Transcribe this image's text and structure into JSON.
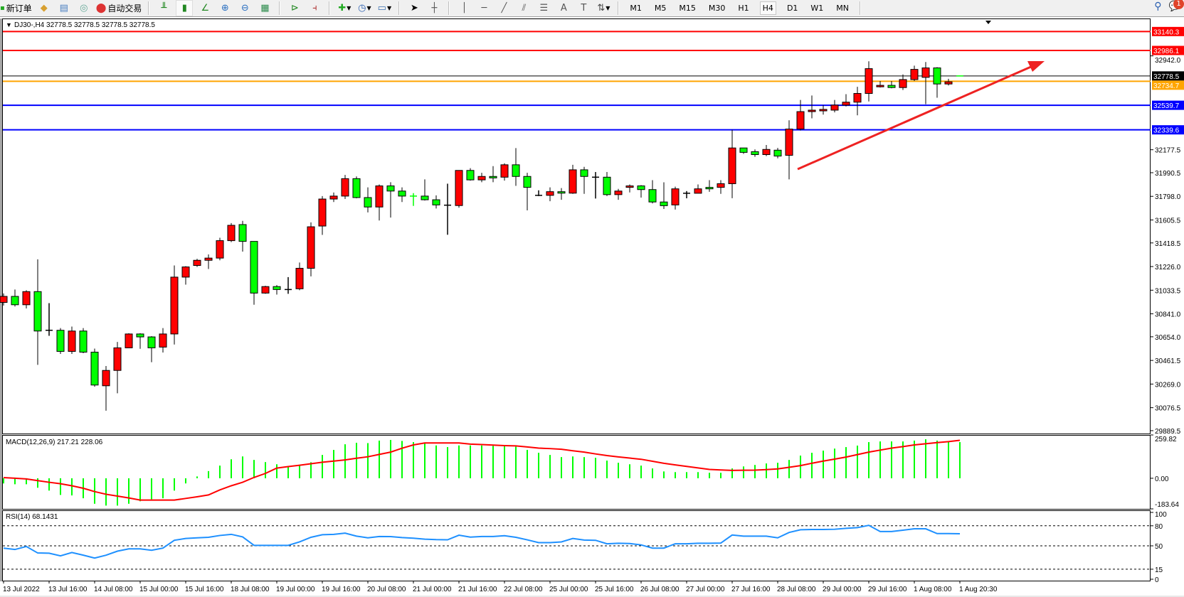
{
  "toolbar": {
    "new_order": "新订单",
    "auto_trading": "自动交易",
    "timeframes": [
      "M1",
      "M5",
      "M15",
      "M30",
      "H1",
      "H4",
      "D1",
      "W1",
      "MN"
    ],
    "active_timeframe": "H4",
    "notification_count": "1",
    "icons": [
      "new-order-icon",
      "market-watch-icon",
      "navigator-icon",
      "signals-icon",
      "auto-trading-icon",
      "bar-chart-icon",
      "candlestick-icon",
      "line-chart-icon",
      "zoom-in-icon",
      "zoom-out-icon",
      "tile-windows-icon",
      "auto-scroll-icon",
      "chart-shift-icon",
      "indicators-icon",
      "periods-icon",
      "templates-icon",
      "cursor-icon",
      "crosshair-icon",
      "vertical-line-icon",
      "horizontal-line-icon",
      "trendline-icon",
      "equidistant-channel-icon",
      "fibonacci-icon",
      "text-icon",
      "text-label-icon",
      "shapes-icon",
      "search-icon",
      "chat-icon"
    ]
  },
  "chart": {
    "header": "DJ30-,H4  32778.5 32778.5 32778.5 32778.5",
    "macd_label": "MACD(12,26,9) 217.21 228.06",
    "rsi_label": "RSI(14) 68.1431"
  },
  "chart_data": {
    "type": "candlestick",
    "symbol": "DJ30-",
    "timeframe": "H4",
    "colors": {
      "bull": "#ff0000",
      "bear": "#00ff00",
      "wick": "#000000",
      "macd_hist": "#00ff00",
      "macd_signal": "#ff0000",
      "rsi": "#1e90ff"
    },
    "ylim": [
      29866,
      33235
    ],
    "price_ticks": [
      "32942.0",
      "32177.5",
      "31990.5",
      "31798.0",
      "31605.5",
      "31418.5",
      "31226.0",
      "31033.5",
      "30841.0",
      "30654.0",
      "30461.5",
      "30269.0",
      "30076.5",
      "29889.5"
    ],
    "bid": "32778.5",
    "levels": [
      {
        "price": "33140.3",
        "color": "#ff0000"
      },
      {
        "price": "32986.1",
        "color": "#ff0000"
      },
      {
        "price": "32734.7",
        "color": "#ffa500"
      },
      {
        "price": "32539.7",
        "color": "#0000ff"
      },
      {
        "price": "32339.6",
        "color": "#0000ff"
      }
    ],
    "time_labels": [
      "13 Jul 2022",
      "13 Jul 16:00",
      "14 Jul 08:00",
      "15 Jul 00:00",
      "15 Jul 16:00",
      "18 Jul 08:00",
      "19 Jul 00:00",
      "19 Jul 16:00",
      "20 Jul 08:00",
      "21 Jul 00:00",
      "21 Jul 16:00",
      "22 Jul 08:00",
      "25 Jul 00:00",
      "25 Jul 16:00",
      "26 Jul 08:00",
      "27 Jul 00:00",
      "27 Jul 16:00",
      "28 Jul 08:00",
      "29 Jul 00:00",
      "29 Jul 16:00",
      "1 Aug 08:00",
      "1 Aug 20:30"
    ],
    "ohlc": [
      [
        30934,
        31007,
        30909,
        30983
      ],
      [
        30983,
        31039,
        30901,
        30915
      ],
      [
        30915,
        31033,
        30885,
        31022
      ],
      [
        31022,
        31285,
        30425,
        30701
      ],
      [
        30707,
        30928,
        30662,
        30707
      ],
      [
        30707,
        30725,
        30514,
        30535
      ],
      [
        30535,
        30737,
        30514,
        30701
      ],
      [
        30701,
        30725,
        30520,
        30529
      ],
      [
        30529,
        30558,
        30247,
        30261
      ],
      [
        30255,
        30416,
        30052,
        30380
      ],
      [
        30380,
        30612,
        30194,
        30564
      ],
      [
        30564,
        30683,
        30564,
        30677
      ],
      [
        30677,
        30683,
        30556,
        30653
      ],
      [
        30653,
        30659,
        30447,
        30564
      ],
      [
        30570,
        30725,
        30526,
        30677
      ],
      [
        30677,
        31235,
        30591,
        31140
      ],
      [
        31140,
        31229,
        31079,
        31223
      ],
      [
        31235,
        31289,
        31223,
        31277
      ],
      [
        31277,
        31325,
        31206,
        31295
      ],
      [
        31295,
        31461,
        31277,
        31437
      ],
      [
        31437,
        31580,
        31425,
        31562
      ],
      [
        31568,
        31598,
        31348,
        31431
      ],
      [
        31431,
        31431,
        30915,
        31010
      ],
      [
        31010,
        31069,
        31004,
        31063
      ],
      [
        31063,
        31075,
        30998,
        31039
      ],
      [
        31039,
        31140,
        31004,
        31039
      ],
      [
        31045,
        31259,
        31033,
        31212
      ],
      [
        31212,
        31586,
        31146,
        31550
      ],
      [
        31556,
        31800,
        31484,
        31776
      ],
      [
        31776,
        31829,
        31752,
        31800
      ],
      [
        31800,
        31972,
        31776,
        31942
      ],
      [
        31942,
        31960,
        31782,
        31788
      ],
      [
        31788,
        31871,
        31667,
        31711
      ],
      [
        31711,
        31895,
        31601,
        31883
      ],
      [
        31883,
        31913,
        31625,
        31841
      ],
      [
        31841,
        31871,
        31752,
        31800
      ],
      [
        31801,
        31824,
        31720,
        31800
      ],
      [
        31800,
        31936,
        31764,
        31770
      ],
      [
        31770,
        31806,
        31699,
        31728
      ],
      [
        31726,
        31901,
        31485,
        31726
      ],
      [
        31723,
        32009,
        31705,
        32009
      ],
      [
        32009,
        32027,
        31926,
        31932
      ],
      [
        31932,
        31990,
        31913,
        31960
      ],
      [
        31960,
        32044,
        31913,
        31948
      ],
      [
        31954,
        32067,
        31926,
        32055
      ],
      [
        32055,
        32191,
        31883,
        31960
      ],
      [
        31960,
        31990,
        31684,
        31871
      ],
      [
        31806,
        31847,
        31800,
        31806
      ],
      [
        31806,
        31871,
        31758,
        31836
      ],
      [
        31836,
        31865,
        31770,
        31824
      ],
      [
        31824,
        32055,
        31818,
        32014
      ],
      [
        32014,
        32038,
        31818,
        31960
      ],
      [
        31954,
        31996,
        31780,
        31954
      ],
      [
        31954,
        31996,
        31800,
        31812
      ],
      [
        31812,
        31859,
        31770,
        31841
      ],
      [
        31871,
        31895,
        31830,
        31883
      ],
      [
        31883,
        31889,
        31788,
        31853
      ],
      [
        31853,
        31930,
        31740,
        31752
      ],
      [
        31752,
        31912,
        31695,
        31722
      ],
      [
        31728,
        31877,
        31690,
        31859
      ],
      [
        31823,
        31841,
        31782,
        31823
      ],
      [
        31823,
        31895,
        31823,
        31859
      ],
      [
        31871,
        31930,
        31835,
        31859
      ],
      [
        31871,
        31930,
        31818,
        31901
      ],
      [
        31901,
        32341,
        31783,
        32192
      ],
      [
        32192,
        32192,
        32144,
        32156
      ],
      [
        32162,
        32180,
        32120,
        32138
      ],
      [
        32138,
        32216,
        32126,
        32180
      ],
      [
        32174,
        32192,
        32108,
        32126
      ],
      [
        32132,
        32417,
        31936,
        32346
      ],
      [
        32346,
        32583,
        32334,
        32488
      ],
      [
        32488,
        32619,
        32433,
        32500
      ],
      [
        32494,
        32541,
        32464,
        32506
      ],
      [
        32500,
        32583,
        32482,
        32541
      ],
      [
        32541,
        32630,
        32530,
        32565
      ],
      [
        32565,
        32690,
        32458,
        32636
      ],
      [
        32636,
        32898,
        32571,
        32838
      ],
      [
        32690,
        32737,
        32684,
        32702
      ],
      [
        32702,
        32737,
        32678,
        32684
      ],
      [
        32684,
        32791,
        32664,
        32749
      ],
      [
        32749,
        32862,
        32737,
        32832
      ],
      [
        32767,
        32892,
        32548,
        32844
      ],
      [
        32844,
        32850,
        32601,
        32713
      ],
      [
        32713,
        32755,
        32701,
        32731
      ],
      [
        32778.6,
        32778.6,
        32778.5,
        32778.5
      ]
    ],
    "macd": {
      "ticks": [
        "259.82",
        "0.00",
        "-183.64"
      ],
      "range": [
        -183.64,
        259.82
      ],
      "histogram": [
        -31,
        -36,
        -36,
        -57,
        -74,
        -100,
        -103,
        -120,
        -153,
        -164,
        -164,
        -153,
        -138,
        -126,
        -120,
        -74,
        -31,
        11,
        43,
        76,
        114,
        131,
        110,
        97,
        84,
        73,
        79,
        96,
        140,
        170,
        204,
        213,
        211,
        226,
        230,
        224,
        217,
        213,
        197,
        187,
        197,
        197,
        197,
        195,
        193,
        190,
        170,
        153,
        140,
        127,
        131,
        127,
        123,
        106,
        93,
        84,
        76,
        59,
        41,
        37,
        37,
        37,
        33,
        33,
        59,
        71,
        80,
        89,
        93,
        110,
        136,
        153,
        166,
        178,
        187,
        196,
        217,
        221,
        221,
        221,
        226,
        234,
        226,
        221,
        217
      ],
      "signal": [
        4,
        0,
        -4,
        -14,
        -24,
        -33,
        -45,
        -60,
        -80,
        -96,
        -107,
        -118,
        -131,
        -131,
        -131,
        -131,
        -121,
        -111,
        -100,
        -70,
        -45,
        -24,
        5,
        29,
        61,
        70,
        78,
        87,
        96,
        103,
        110,
        120,
        129,
        143,
        157,
        180,
        200,
        212,
        212,
        212,
        212,
        205,
        202,
        199,
        196,
        194,
        188,
        181,
        178,
        174,
        165,
        157,
        146,
        136,
        128,
        121,
        114,
        102,
        90,
        80,
        71,
        62,
        53,
        50,
        47,
        48,
        49,
        52,
        56,
        66,
        76,
        90,
        103,
        115,
        127,
        142,
        157,
        169,
        181,
        190,
        200,
        207,
        214,
        220,
        228
      ]
    },
    "rsi": {
      "ticks": [
        "100",
        "80",
        "50",
        "15",
        "0"
      ],
      "levels": [
        80,
        50,
        15
      ],
      "values": [
        46.6,
        44.5,
        49,
        39.3,
        39,
        35,
        40,
        36,
        31.7,
        36,
        42,
        45.5,
        45.5,
        43.4,
        46.6,
        58.3,
        61,
        62,
        62.8,
        65.5,
        67.2,
        63.4,
        50.7,
        50.7,
        50.7,
        50.7,
        55.9,
        62.8,
        66.6,
        67.2,
        69,
        64.5,
        62,
        64,
        63.8,
        62.4,
        61.4,
        60,
        59.3,
        59,
        65.9,
        63,
        64,
        64,
        65.2,
        62.8,
        59,
        54.8,
        54.8,
        55.9,
        61,
        58.6,
        58.3,
        53.1,
        53.8,
        53.4,
        51.4,
        46.6,
        46.6,
        53.1,
        53.1,
        53.8,
        53.8,
        54.1,
        66.2,
        64.5,
        64.5,
        64.5,
        62,
        70,
        74.1,
        74.5,
        74.5,
        74.8,
        76.2,
        77.2,
        80.7,
        71.4,
        71.4,
        73.4,
        75.5,
        75.5,
        68.3,
        68.3,
        68.1
      ]
    }
  }
}
